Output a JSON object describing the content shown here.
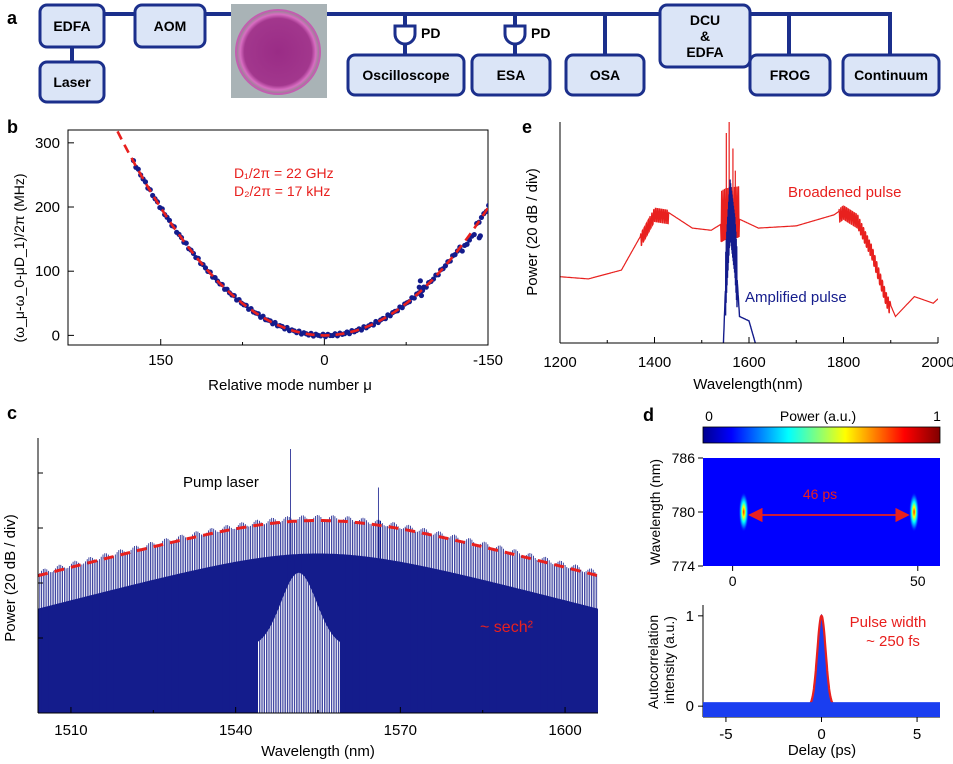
{
  "colors": {
    "box_fill": "#dbe5f7",
    "box_stroke": "#1b2f8c",
    "bus": "#1b2f8c",
    "data_blue": "#141c8c",
    "fit_red": "#e8201e",
    "axis": "#000000"
  },
  "panels": {
    "a": "a",
    "b": "b",
    "c": "c",
    "d": "d",
    "e": "e"
  },
  "setup": {
    "boxes": [
      "EDFA",
      "AOM",
      "Laser",
      "Oscilloscope",
      "ESA",
      "OSA",
      "DCU\n&\nEDFA",
      "FROG",
      "Continuum"
    ],
    "pd_labels": [
      "PD",
      "PD"
    ]
  },
  "chart_data": [
    {
      "id": "b",
      "type": "scatter",
      "xlabel": "Relative mode number μ",
      "ylabel": "(ω_μ-ω_0-μD_1)/2π (MHz)",
      "x_ticks": [
        150,
        0,
        -150
      ],
      "y_ticks": [
        0,
        100,
        200,
        300
      ],
      "xlim": [
        235,
        -150
      ],
      "ylim": [
        -15,
        320
      ],
      "annotations": [
        "D₁/2π = 22 GHz",
        "D₂/2π = 17 kHz"
      ],
      "fit": {
        "D2_kHz": 17,
        "x_range": [
          235,
          -210
        ]
      },
      "data_range": [
        175,
        -195
      ],
      "series": [
        {
          "name": "measured",
          "type": "scatter"
        },
        {
          "name": "fit",
          "type": "line",
          "style": "dashed"
        }
      ]
    },
    {
      "id": "e",
      "type": "line",
      "xlabel": "Wavelength(nm)",
      "ylabel": "Power (20 dB / div)",
      "x_ticks": [
        1200,
        1400,
        1600,
        1800,
        2000
      ],
      "xlim": [
        1200,
        2000
      ],
      "series": [
        {
          "name": "Broadened pulse",
          "x": [
            1200,
            1260,
            1330,
            1380,
            1400,
            1430,
            1480,
            1520,
            1550,
            1580,
            1620,
            1700,
            1780,
            1800,
            1830,
            1860,
            1890,
            1910,
            1950,
            1990,
            2000
          ],
          "y": [
            30,
            29,
            33,
            52,
            60,
            59,
            52,
            51,
            55,
            56,
            52,
            53,
            58,
            61,
            57,
            43,
            22,
            12,
            21,
            18,
            20
          ]
        },
        {
          "name": "Amplified pulse",
          "x": [
            1545,
            1552,
            1560,
            1570,
            1580,
            1600,
            1620
          ],
          "y": [
            -5,
            35,
            62,
            45,
            12,
            10,
            -5
          ]
        }
      ],
      "annotations": [
        "Broadened pulse",
        "Amplified pulse"
      ]
    },
    {
      "id": "c",
      "type": "line",
      "xlabel": "Wavelength (nm)",
      "ylabel": "Power (20 dB / div)",
      "x_ticks": [
        1510,
        1540,
        1570,
        1600
      ],
      "xlim": [
        1504,
        1606
      ],
      "fit_name": "~ sech²",
      "pump_label": "Pump laser",
      "center_nm": 1555,
      "series": [
        {
          "name": "spectrum"
        },
        {
          "name": "sech² fit",
          "style": "dashed"
        }
      ]
    },
    {
      "id": "d_top",
      "type": "heatmap",
      "colorbar_label": "Power (a.u.)",
      "colorbar_ticks": [
        "0",
        "1"
      ],
      "ylabel": "Wavelength (nm)",
      "y_ticks": [
        774,
        780,
        786
      ],
      "x_ticks": [
        0,
        50
      ],
      "xlim": [
        -8,
        56
      ],
      "ylim": [
        774,
        786
      ],
      "spots": [
        {
          "x": 3,
          "y": 780
        },
        {
          "x": 49,
          "y": 780
        }
      ],
      "annotation": "46 ps"
    },
    {
      "id": "d_bottom",
      "type": "area",
      "xlabel": "Delay (ps)",
      "ylabel": "Autocorrelation intensity (a.u.)",
      "x_ticks": [
        -5,
        0,
        5
      ],
      "y_ticks": [
        0,
        1
      ],
      "xlim": [
        -6.2,
        6.2
      ],
      "ylim": [
        -0.12,
        1.12
      ],
      "annotations": [
        "Pulse width",
        "~ 250 fs"
      ]
    }
  ]
}
